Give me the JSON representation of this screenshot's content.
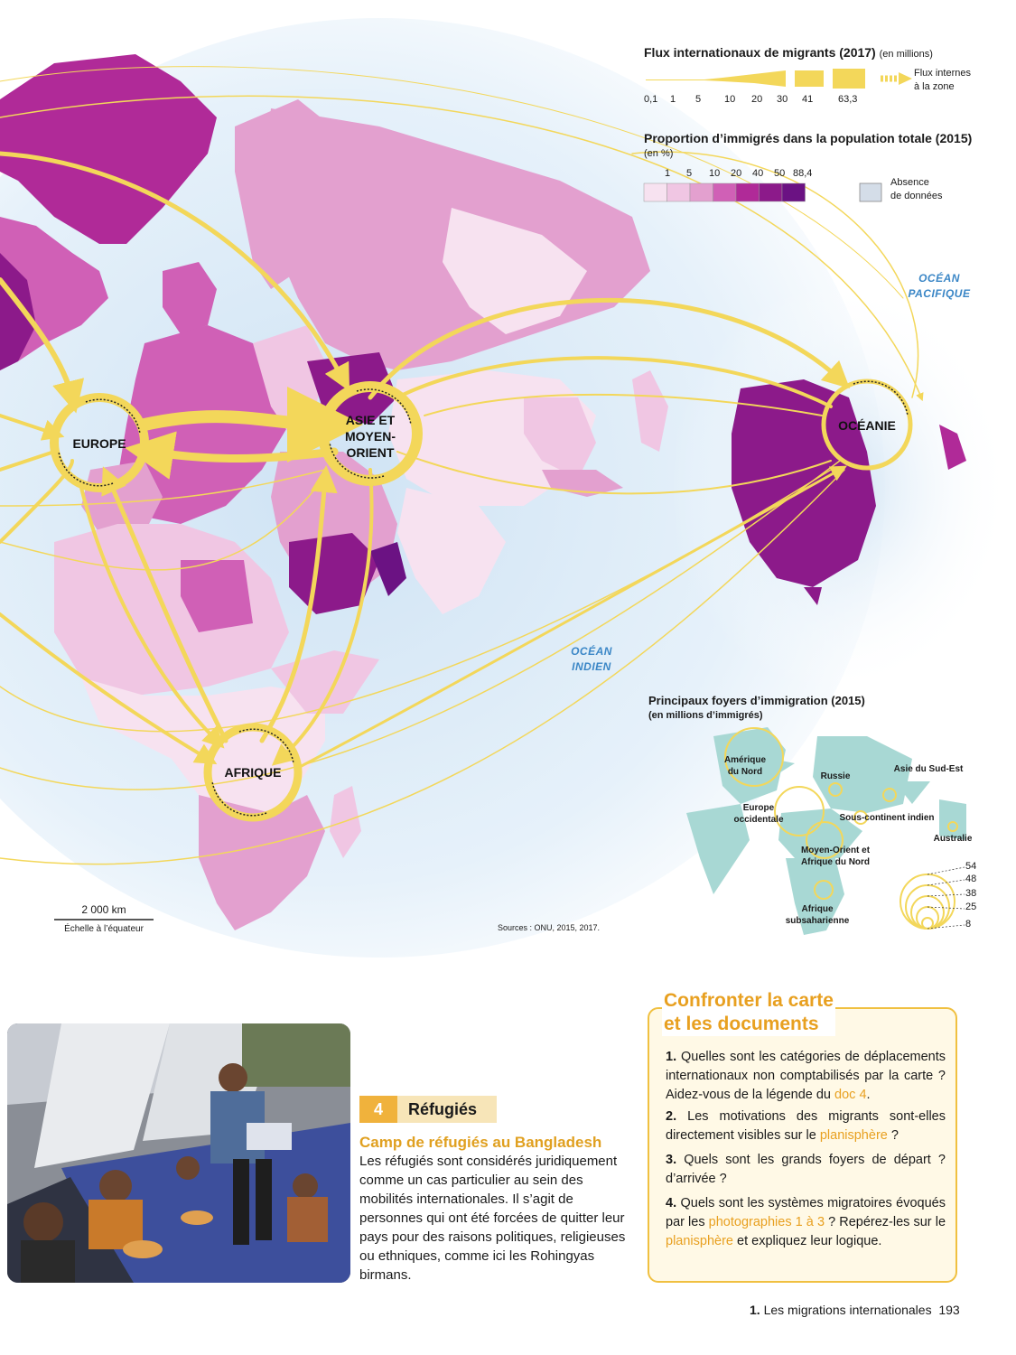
{
  "legend": {
    "flux_title": "Flux internationaux de migrants (2017)",
    "flux_unit": "(en millions)",
    "flux_ticks": [
      "0,1",
      "1",
      "5",
      "10",
      "20",
      "30",
      "41",
      "63,3"
    ],
    "internal_flow_label_1": "Flux internes",
    "internal_flow_label_2": "à la zone",
    "proportion_title": "Proportion d’immigrés dans la population totale (2015)",
    "proportion_unit": "(en %)",
    "proportion_ticks": [
      "1",
      "5",
      "10",
      "20",
      "40",
      "50",
      "88,4"
    ],
    "proportion_colors": [
      "#f7e2f0",
      "#f0c6e3",
      "#e3a0cf",
      "#d060b6",
      "#b02a98",
      "#8c1a8a",
      "#6b1283"
    ],
    "no_data_label_1": "Absence",
    "no_data_label_2": "de données",
    "no_data_color": "#d4dde8",
    "flow_color": "#f3d75a"
  },
  "zones": {
    "europe": "EUROPE",
    "asia_1": "ASIE ET",
    "asia_2": "MOYEN-",
    "asia_3": "ORIENT",
    "oceania": "OCÉANIE",
    "africa": "AFRIQUE"
  },
  "oceans": {
    "pacific_1": "OCÉAN",
    "pacific_2": "PACIFIQUE",
    "indian_1": "OCÉAN",
    "indian_2": "INDIEN"
  },
  "scale": {
    "label": "2 000 km",
    "note": "Échelle à l’équateur"
  },
  "sources": "Sources : ONU, 2015, 2017.",
  "inset": {
    "title": "Principaux foyers d’immigration (2015)",
    "subtitle": "(en millions d’immigrés)",
    "places": {
      "north_america_1": "Amérique",
      "north_america_2": "du Nord",
      "russia": "Russie",
      "se_asia": "Asie du Sud-Est",
      "w_europe_1": "Europe",
      "w_europe_2": "occidentale",
      "indian_sub": "Sous-continent indien",
      "australia": "Australie",
      "mena_1": "Moyen-Orient et",
      "mena_2": "Afrique du Nord",
      "ssa_1": "Afrique",
      "ssa_2": "subsaharienne"
    },
    "circle_values": [
      "54",
      "48",
      "38",
      "25",
      "8"
    ]
  },
  "doc4": {
    "number": "4",
    "title": "Réfugiés",
    "subtitle": "Camp de réfugiés au Bangladesh",
    "text": "Les réfugiés sont considérés juridiquement comme un cas particulier au sein des mobilités internationales. Il s’agit de personnes qui ont été forcées de quitter leur pays pour des raisons politiques, religieuses ou ethniques, comme ici les Rohingyas birmans."
  },
  "exercise": {
    "title_1": "Confronter la carte",
    "title_2": "et les documents",
    "q1_num": "1.",
    "q1_text": "Quelles sont les catégories de déplacements internationaux non comptabilisés par la carte ? Aidez-vous de la légende du",
    "q1_link": "doc 4",
    "q1_end": ".",
    "q2_num": "2.",
    "q2_text": "Les motivations des migrants sont-elles directement visibles sur le",
    "q2_link": "planisphère",
    "q2_end": " ?",
    "q3_num": "3.",
    "q3_text": "Quels sont les grands foyers de départ ? d’arrivée ?",
    "q4_num": "4.",
    "q4_text": "Quels sont les systèmes migratoires évoqués par les",
    "q4_link": "photographies 1 à 3",
    "q4_mid": " ? Repérez-les sur le",
    "q4_link2": "planisphère",
    "q4_end": " et expliquez leur logique."
  },
  "footer": {
    "chapter": "1.",
    "chapter_title": "Les migrations internationales",
    "page": "193"
  }
}
